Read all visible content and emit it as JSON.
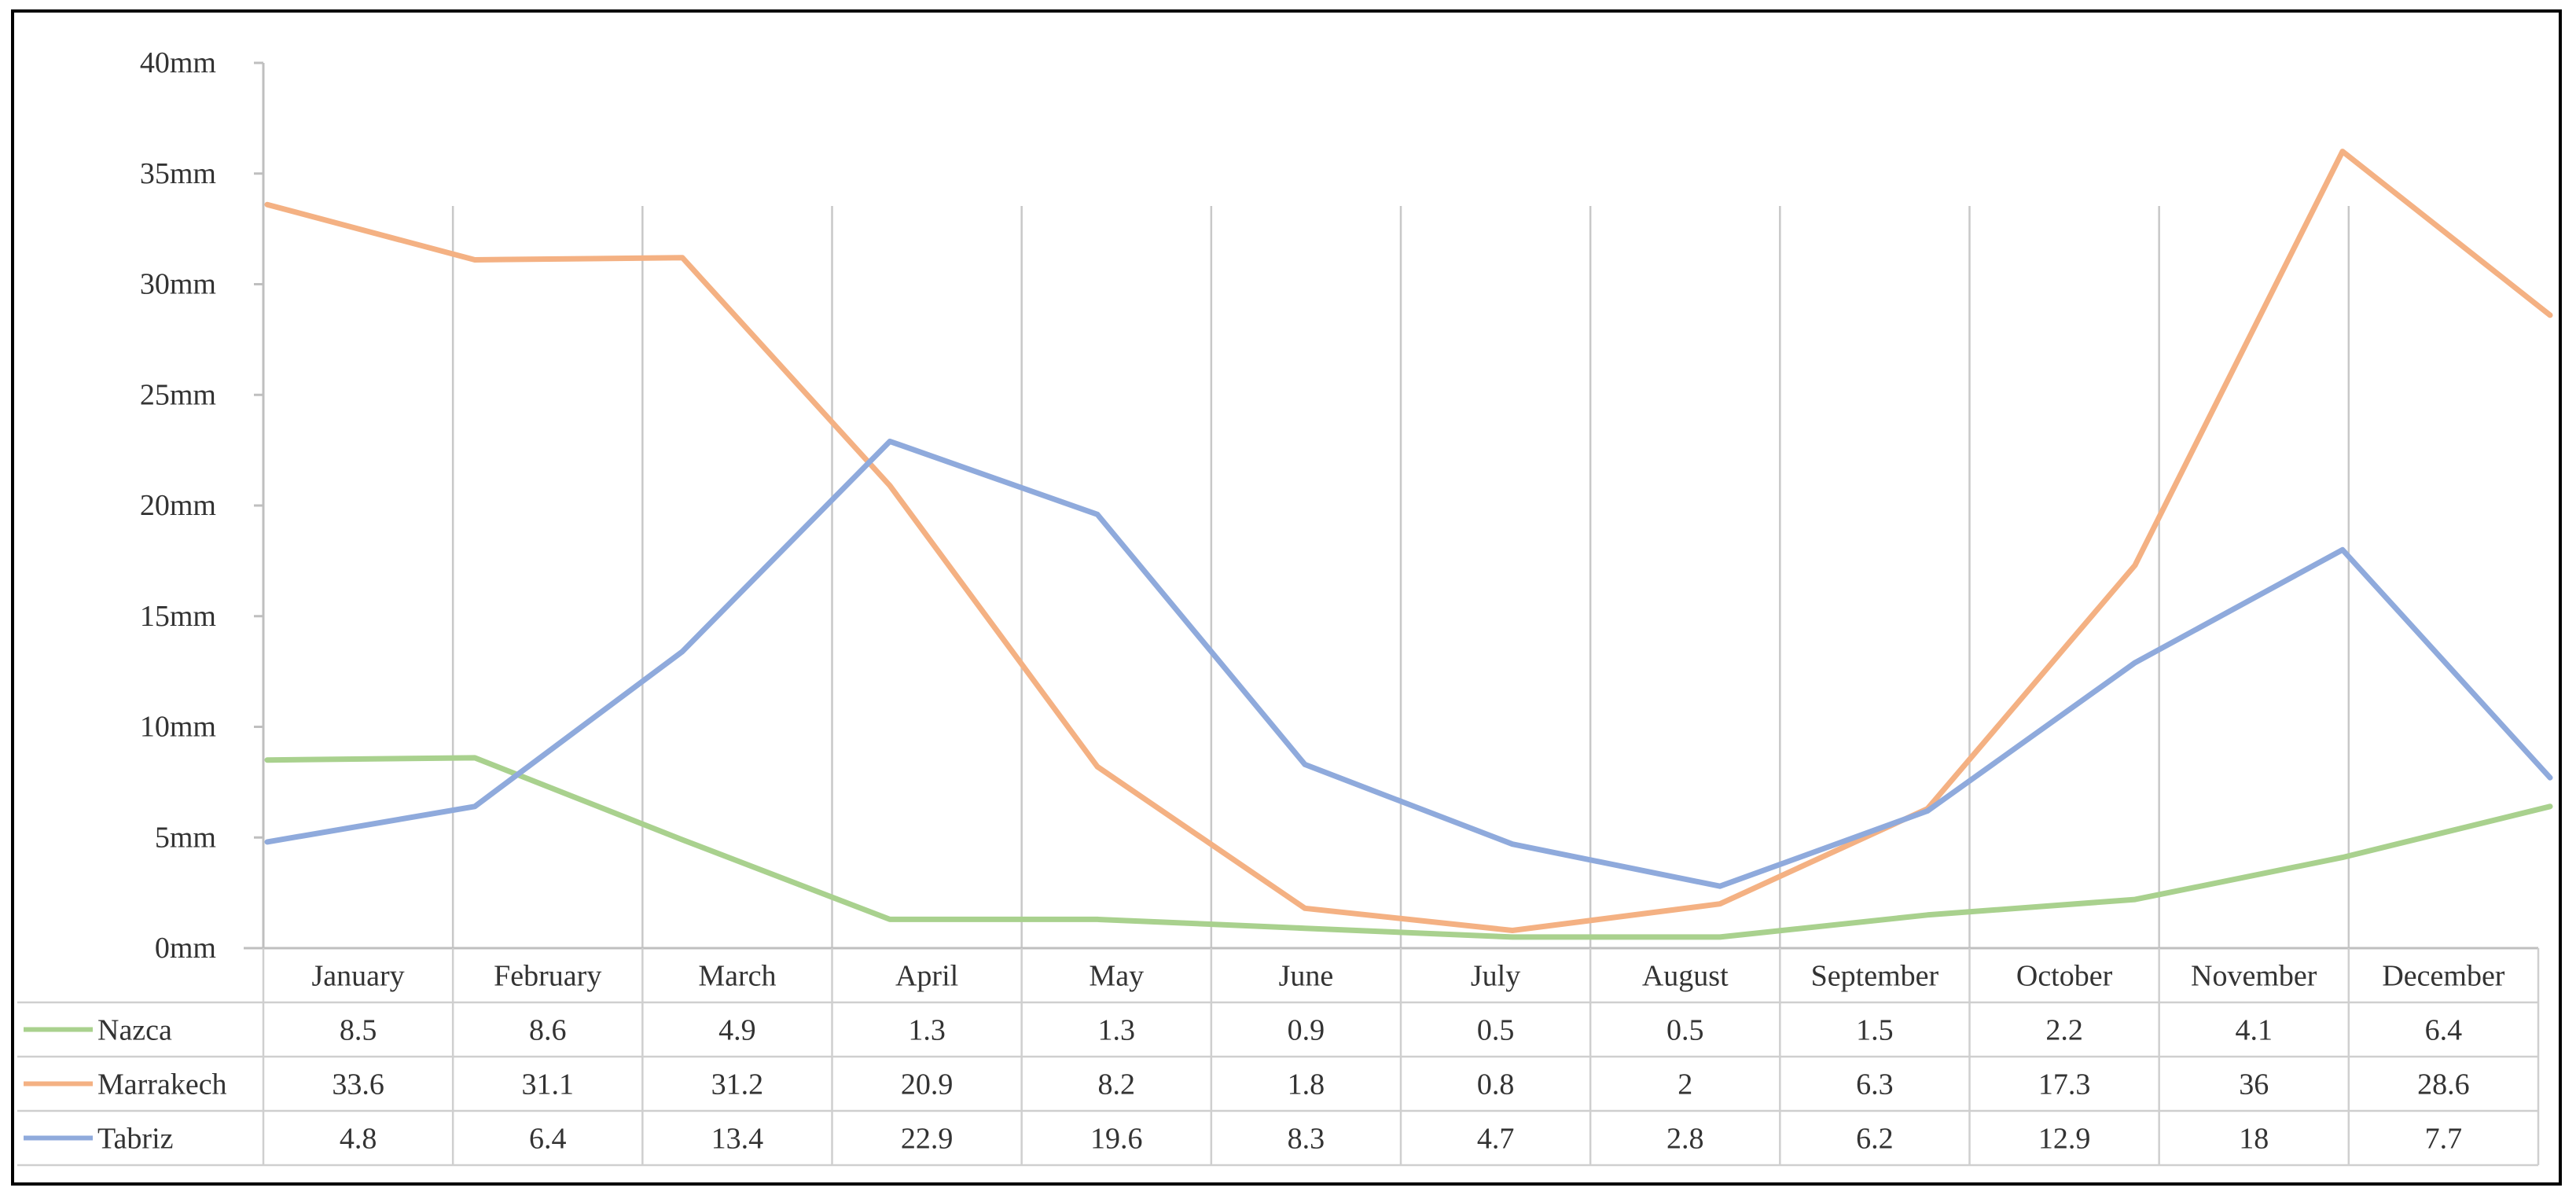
{
  "chart_data": {
    "type": "line",
    "categories": [
      "January",
      "February",
      "March",
      "April",
      "May",
      "June",
      "July",
      "August",
      "September",
      "October",
      "November",
      "December"
    ],
    "y_ticks": [
      "0mm",
      "5mm",
      "10mm",
      "15mm",
      "20mm",
      "25mm",
      "30mm",
      "35mm",
      "40mm"
    ],
    "ylim": [
      0,
      40
    ],
    "grid": "vertical category lines",
    "legend": "data table below chart",
    "series": [
      {
        "name": "Nazca",
        "color": "#a9d18e",
        "values": [
          8.5,
          8.6,
          4.9,
          1.3,
          1.3,
          0.9,
          0.5,
          0.5,
          1.5,
          2.2,
          4.1,
          6.4
        ],
        "labels": [
          "8.5",
          "8.6",
          "4.9",
          "1.3",
          "1.3",
          "0.9",
          "0.5",
          "0.5",
          "1.5",
          "2.2",
          "4.1",
          "6.4"
        ]
      },
      {
        "name": "Marrakech",
        "color": "#f4b183",
        "values": [
          33.6,
          31.1,
          31.2,
          20.9,
          8.2,
          1.8,
          0.8,
          2,
          6.3,
          17.3,
          36,
          28.6
        ],
        "labels": [
          "33.6",
          "31.1",
          "31.2",
          "20.9",
          "8.2",
          "1.8",
          "0.8",
          "2",
          "6.3",
          "17.3",
          "36",
          "28.6"
        ]
      },
      {
        "name": "Tabriz",
        "color": "#8faadc",
        "values": [
          4.8,
          6.4,
          13.4,
          22.9,
          19.6,
          8.3,
          4.7,
          2.8,
          6.2,
          12.9,
          18,
          7.7
        ],
        "labels": [
          "4.8",
          "6.4",
          "13.4",
          "22.9",
          "19.6",
          "8.3",
          "4.7",
          "2.8",
          "6.2",
          "12.9",
          "18",
          "7.7"
        ]
      }
    ]
  }
}
